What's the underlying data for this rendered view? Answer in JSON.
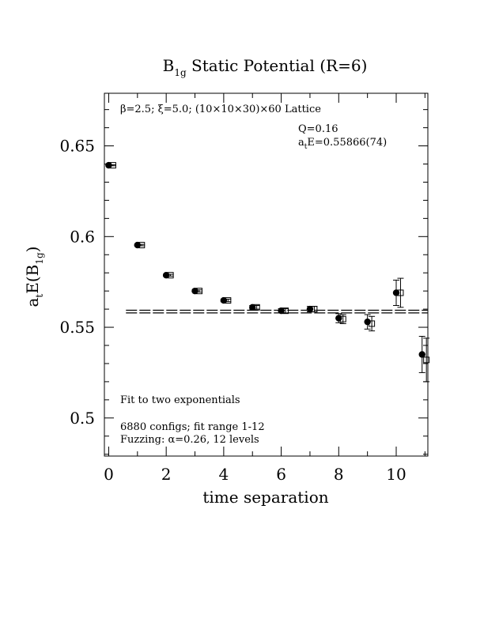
{
  "chart_data": {
    "type": "scatter",
    "title": "B",
    "title_sub": "1g",
    "title_rest": " Static Potential (R=6)",
    "xlabel": "time separation",
    "ylabel_main": "a",
    "ylabel_sub1": "t",
    "ylabel_mid": "E(B",
    "ylabel_sub2": "1g",
    "ylabel_end": ")",
    "xlim": [
      -0.15,
      11.1
    ],
    "ylim": [
      0.479,
      0.679
    ],
    "x_ticks": [
      "0",
      "2",
      "4",
      "6",
      "8",
      "10"
    ],
    "y_ticks": [
      "0.5",
      "0.55",
      "0.6",
      "0.65"
    ],
    "annotations": {
      "lattice": "β=2.5; ξ=5.0; (10×10×30)×60 Lattice",
      "q": "Q=0.16",
      "fit_energy_prefix": "a",
      "fit_energy_sub": "t",
      "fit_energy_rest": "E=0.55866(74)",
      "fit_type": "Fit to two exponentials",
      "configs": "6880 configs; fit range 1-12",
      "fuzzing": "Fuzzing: α=0.26, 12 levels"
    },
    "fit": {
      "value": 0.55866,
      "error": 0.00074,
      "x_range": [
        0.6,
        11.1
      ]
    },
    "series": [
      {
        "marker": "filled-circle",
        "x": [
          0,
          1,
          2,
          3,
          4,
          5,
          6,
          7,
          8,
          9,
          10,
          10.9
        ],
        "y": [
          0.6393,
          0.5953,
          0.5787,
          0.57,
          0.5648,
          0.561,
          0.5591,
          0.56,
          0.555,
          0.553,
          0.569,
          0.535
        ],
        "err": [
          0.0003,
          0.0004,
          0.0005,
          0.0006,
          0.0007,
          0.001,
          0.0012,
          0.0015,
          0.0025,
          0.004,
          0.007,
          0.01
        ]
      },
      {
        "marker": "open-square",
        "x": [
          0.15,
          1.15,
          2.15,
          3.15,
          4.15,
          5.15,
          6.15,
          7.15,
          8.15,
          9.15,
          10.15,
          11.05
        ],
        "y": [
          0.6393,
          0.5953,
          0.5787,
          0.57,
          0.5648,
          0.561,
          0.5591,
          0.56,
          0.5545,
          0.552,
          0.569,
          0.532
        ],
        "err": [
          0.0003,
          0.0004,
          0.0005,
          0.0006,
          0.0007,
          0.001,
          0.0012,
          0.0015,
          0.0025,
          0.004,
          0.008,
          0.012
        ]
      }
    ]
  }
}
